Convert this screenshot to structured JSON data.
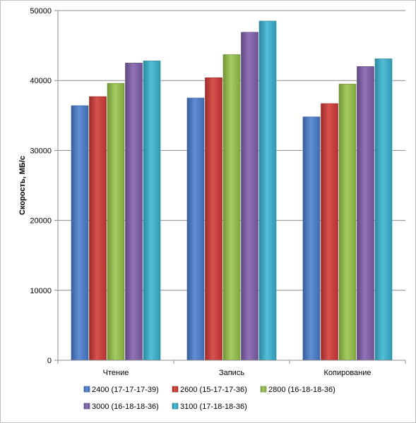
{
  "chart_data": {
    "type": "bar",
    "title": "",
    "xlabel": "",
    "ylabel": "Скорость, МБ/с",
    "ylim": [
      0,
      50000
    ],
    "yticks": [
      0,
      10000,
      20000,
      30000,
      40000,
      50000
    ],
    "grid": true,
    "legend_position": "bottom",
    "categories": [
      "Чтение",
      "Запись",
      "Копирование"
    ],
    "series": [
      {
        "name": "2400 (17-17-17-39)",
        "color": "#4a7fd0",
        "values": [
          36400,
          37500,
          34800
        ]
      },
      {
        "name": "2600 (15-17-17-36)",
        "color": "#d33a36",
        "values": [
          37700,
          40400,
          36700
        ]
      },
      {
        "name": "2800 (16-18-18-36)",
        "color": "#98c54a",
        "values": [
          39600,
          43700,
          39500
        ]
      },
      {
        "name": "3000 (16-18-18-36)",
        "color": "#8160ad",
        "values": [
          42500,
          46900,
          42000
        ]
      },
      {
        "name": "3100 (17-18-18-36)",
        "color": "#3ab5d3",
        "values": [
          42800,
          48500,
          43100
        ]
      }
    ]
  }
}
